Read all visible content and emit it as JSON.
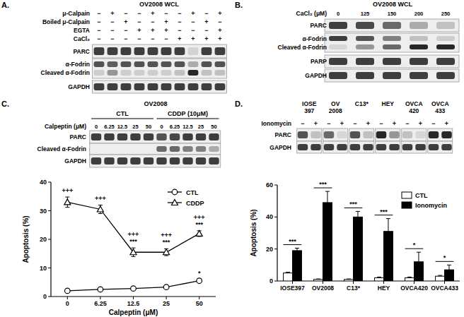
{
  "blots": [
    {
      "label": "A.",
      "title": "OV2008 WCL",
      "conditions": [
        {
          "name": "μ-Calpain",
          "signs": [
            "−",
            "+",
            "−",
            "−",
            "+",
            "−",
            "−",
            "+",
            "−",
            "+"
          ]
        },
        {
          "name": "Boiled μ-Calpain",
          "signs": [
            "−",
            "−",
            "+",
            "−",
            "−",
            "+",
            "−",
            "−",
            "+",
            "−"
          ]
        },
        {
          "name": "EGTA",
          "signs": [
            "−",
            "−",
            "−",
            "+",
            "+",
            "+",
            "−",
            "−",
            "−",
            "+"
          ]
        },
        {
          "name": "CaCl₂",
          "signs": [
            "−",
            "−",
            "−",
            "−",
            "−",
            "−",
            "+",
            "+",
            "+",
            "+"
          ]
        }
      ],
      "rows": [
        {
          "name": "PARC",
          "bands": [
            0.8,
            0.8,
            0.8,
            0.8,
            0.8,
            0.8,
            0.8,
            0.12,
            0.8,
            0.8
          ]
        },
        {
          "name": "α-Fodrin",
          "bands": [
            0.7,
            0.65,
            0.7,
            0.7,
            0.7,
            0.7,
            0.7,
            0.3,
            0.7,
            0.7
          ]
        },
        {
          "name": "Cleaved α-Fodrin",
          "bands": [
            0.15,
            0.4,
            0.15,
            0.15,
            0.15,
            0.15,
            0.2,
            0.9,
            0.2,
            0.2
          ]
        },
        {
          "name": "GAPDH",
          "bands": [
            0.8,
            0.8,
            0.8,
            0.8,
            0.8,
            0.8,
            0.8,
            0.8,
            0.8,
            0.8
          ]
        }
      ]
    },
    {
      "label": "B.",
      "title": "OV2008 WCL",
      "conditions": [
        {
          "name": "CaCl₂ (μM)",
          "signs": [
            0,
            125,
            150,
            200,
            250
          ]
        }
      ],
      "rows": [
        {
          "name": "PARC",
          "bands": [
            0.8,
            0.75,
            0.6,
            0.3,
            0.2
          ]
        },
        {
          "name": "α-Fodrin",
          "bands": [
            0.8,
            0.7,
            0.5,
            0.2,
            0.15
          ]
        },
        {
          "name": "Cleaved α-Fodrin",
          "bands": [
            0.1,
            0.4,
            0.6,
            0.9,
            0.9
          ]
        },
        {
          "name": "PARP",
          "bands": [
            0.8,
            0.8,
            0.8,
            0.8,
            0.8
          ]
        },
        {
          "name": "GAPDH",
          "bands": [
            0.8,
            0.8,
            0.8,
            0.8,
            0.8
          ]
        }
      ]
    },
    {
      "label": "C.",
      "title": "OV2008",
      "groups": [
        "CTL",
        "CDDP (10μM)"
      ],
      "conditions": [
        {
          "name": "Calpeptin (μM)",
          "signs": [
            0,
            6.25,
            12.5,
            25,
            50,
            0,
            6.25,
            12.5,
            25,
            50
          ]
        }
      ],
      "rows": [
        {
          "name": "PARC",
          "bands": [
            0.8,
            0.8,
            0.8,
            0.8,
            0.8,
            0.7,
            0.75,
            0.8,
            0.8,
            0.8
          ]
        },
        {
          "name": "Cleaved α-Fodrin",
          "bands": [
            0,
            0,
            0,
            0,
            0,
            0.6,
            0.6,
            0.5,
            0.5,
            0.3
          ]
        },
        {
          "name": "GAPDH",
          "bands": [
            0.8,
            0.8,
            0.8,
            0.8,
            0.8,
            0.8,
            0.8,
            0.8,
            0.8,
            0.8
          ]
        }
      ]
    },
    {
      "label": "D.",
      "groups": [
        "IOSE 397",
        "OV 2008",
        "C13*",
        "HEY",
        "OVCA 420",
        "OVCA 433"
      ],
      "conditions": [
        {
          "name": "Ionomycin",
          "signs": [
            "−",
            "+",
            "−",
            "+",
            "−",
            "+",
            "−",
            "+",
            "−",
            "+",
            "−",
            "+"
          ]
        }
      ],
      "rows": [
        {
          "name": "PARC",
          "bands": [
            0.7,
            0.2,
            0.6,
            0.1,
            0.7,
            0.2,
            0.9,
            0.4,
            0.2,
            0.1,
            0.9,
            0.9
          ]
        },
        {
          "name": "GAPDH",
          "bands": [
            0.8,
            0.8,
            0.8,
            0.8,
            0.8,
            0.8,
            0.8,
            0.8,
            0.8,
            0.8,
            0.8,
            0.8
          ]
        }
      ]
    }
  ],
  "chart_data": [
    {
      "type": "line",
      "x_label": "Calpeptin (μM)",
      "y_label": "Apoptosis (%)",
      "categories": [
        0,
        6.25,
        12.5,
        25,
        50
      ],
      "ylim": [
        0,
        40
      ],
      "yticks": [
        0,
        10,
        20,
        30,
        40
      ],
      "grid": false,
      "legend": "top-right",
      "series": [
        {
          "name": "CTL",
          "color": "#000000",
          "marker": "circle",
          "values": [
            2,
            2.5,
            2.8,
            3.3,
            5.5
          ],
          "errors": [
            0.3,
            0.3,
            0.3,
            0.3,
            0.5
          ],
          "annotations": [
            [],
            [],
            [],
            [],
            [
              "*"
            ]
          ]
        },
        {
          "name": "CDDP",
          "color": "#000000",
          "marker": "triangle",
          "values": [
            33,
            30.5,
            15.5,
            15.5,
            22
          ],
          "errors": [
            1.8,
            1.5,
            1.5,
            1.2,
            1.0
          ],
          "annotations": [
            [
              "+++"
            ],
            [
              "+++"
            ],
            [
              "+++",
              "***"
            ],
            [
              "+++",
              "***"
            ],
            [
              "+++",
              "***"
            ]
          ]
        }
      ]
    },
    {
      "type": "bar",
      "y_label": "Apoptosis (%)",
      "categories": [
        "IOSE397",
        "OV2008",
        "C13*",
        "HEY",
        "OVCA420",
        "OVCA433"
      ],
      "ylim": [
        0,
        60
      ],
      "yticks": [
        0,
        20,
        40,
        60
      ],
      "grid": false,
      "legend": "top-right",
      "series": [
        {
          "name": "CTL",
          "color": "#ffffff",
          "values": [
            5,
            1,
            1,
            2,
            2,
            3
          ],
          "errors": [
            0.5,
            0.3,
            0.3,
            0.5,
            0.5,
            0.5
          ]
        },
        {
          "name": "Ionomycin",
          "color": "#000000",
          "values": [
            19,
            49,
            40,
            31,
            12,
            7
          ],
          "errors": [
            1.5,
            7,
            3.5,
            8,
            6,
            3
          ]
        }
      ],
      "significance": [
        "***",
        "***",
        "***",
        "***",
        "*",
        "*"
      ]
    }
  ]
}
